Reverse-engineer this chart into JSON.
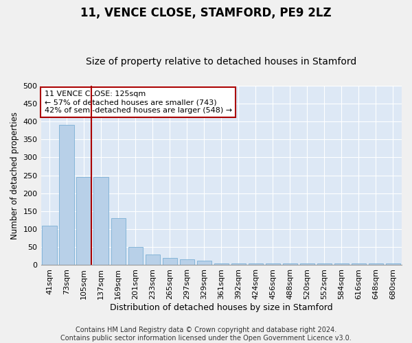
{
  "title": "11, VENCE CLOSE, STAMFORD, PE9 2LZ",
  "subtitle": "Size of property relative to detached houses in Stamford",
  "xlabel": "Distribution of detached houses by size in Stamford",
  "ylabel": "Number of detached properties",
  "categories": [
    "41sqm",
    "73sqm",
    "105sqm",
    "137sqm",
    "169sqm",
    "201sqm",
    "233sqm",
    "265sqm",
    "297sqm",
    "329sqm",
    "361sqm",
    "392sqm",
    "424sqm",
    "456sqm",
    "488sqm",
    "520sqm",
    "552sqm",
    "584sqm",
    "616sqm",
    "648sqm",
    "680sqm"
  ],
  "values": [
    110,
    390,
    245,
    245,
    130,
    50,
    30,
    20,
    17,
    12,
    5,
    5,
    5,
    5,
    5,
    5,
    5,
    5,
    5,
    5,
    5
  ],
  "bar_color": "#b8d0e8",
  "bar_edge_color": "#7aafd4",
  "vline_color": "#aa0000",
  "vline_pos": 2.45,
  "annotation_text": "11 VENCE CLOSE: 125sqm\n← 57% of detached houses are smaller (743)\n42% of semi-detached houses are larger (548) →",
  "annotation_box_color": "#ffffff",
  "annotation_box_edge": "#aa0000",
  "ylim": [
    0,
    500
  ],
  "yticks": [
    0,
    50,
    100,
    150,
    200,
    250,
    300,
    350,
    400,
    450,
    500
  ],
  "background_color": "#dde8f5",
  "grid_color": "#ffffff",
  "footer_line1": "Contains HM Land Registry data © Crown copyright and database right 2024.",
  "footer_line2": "Contains public sector information licensed under the Open Government Licence v3.0.",
  "title_fontsize": 12,
  "subtitle_fontsize": 10,
  "xlabel_fontsize": 9,
  "ylabel_fontsize": 8.5,
  "tick_fontsize": 8,
  "annotation_fontsize": 8,
  "footer_fontsize": 7
}
